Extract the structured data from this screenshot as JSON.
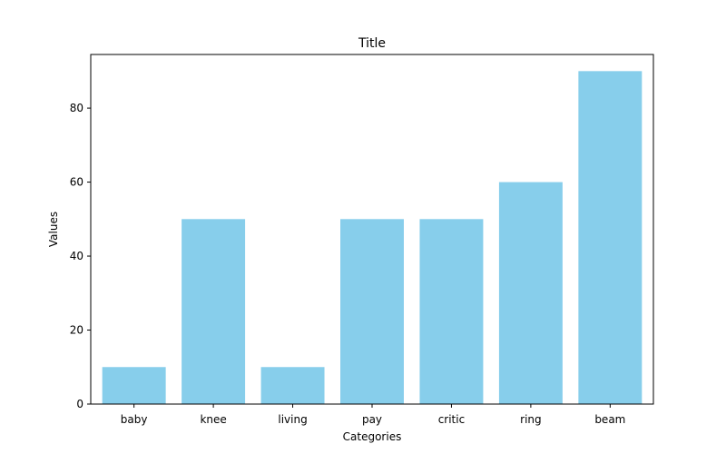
{
  "chart_data": {
    "type": "bar",
    "title": "Title",
    "xlabel": "Categories",
    "ylabel": "Values",
    "categories": [
      "baby",
      "knee",
      "living",
      "pay",
      "critic",
      "ring",
      "beam"
    ],
    "values": [
      10,
      50,
      10,
      50,
      50,
      60,
      90
    ],
    "ylim": [
      0,
      94.5
    ],
    "yticks": [
      0,
      20,
      40,
      60,
      80
    ],
    "bar_color": "#87ceeb",
    "grid": false,
    "legend": "none"
  }
}
